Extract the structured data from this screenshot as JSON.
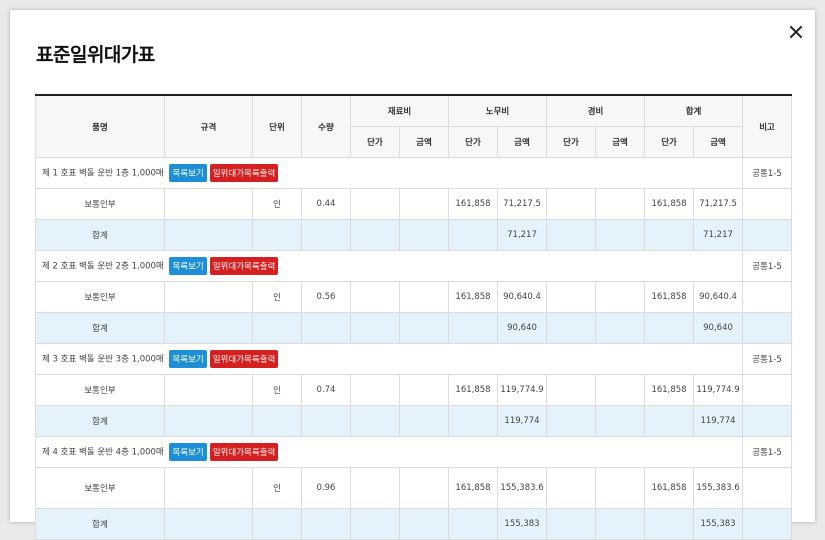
{
  "title": "표준일위대가표",
  "headers": {
    "name": "품명",
    "spec": "규격",
    "unit": "단위",
    "qty": "수량",
    "material": "재료비",
    "labor": "노무비",
    "expense": "경비",
    "sum": "합계",
    "note": "비고",
    "unit_price": "단가",
    "amount": "금액"
  },
  "buttons": {
    "list_view": "목록보기",
    "print": "일위대가목록출력"
  },
  "groups": [
    {
      "name": "제 1 호표 벽돌 운반 1층 1,000매",
      "note": "공통1-5",
      "item": {
        "name": "보통인부",
        "spec": "",
        "unit": "인",
        "qty": "0.44",
        "mat_price": "",
        "mat_amount": "",
        "labor_price": "161,858",
        "labor_amount": "71,217.5",
        "exp_price": "",
        "exp_amount": "",
        "sum_price": "161,858",
        "sum_amount": "71,217.5",
        "note": ""
      },
      "total": {
        "name": "합계",
        "labor_amount": "71,217",
        "sum_amount": "71,217"
      }
    },
    {
      "name": "제 2 호표 벽돌 운반 2층 1,000매",
      "note": "공통1-5",
      "item": {
        "name": "보통인부",
        "spec": "",
        "unit": "인",
        "qty": "0.56",
        "mat_price": "",
        "mat_amount": "",
        "labor_price": "161,858",
        "labor_amount": "90,640.4",
        "exp_price": "",
        "exp_amount": "",
        "sum_price": "161,858",
        "sum_amount": "90,640.4",
        "note": ""
      },
      "total": {
        "name": "합계",
        "labor_amount": "90,640",
        "sum_amount": "90,640"
      }
    },
    {
      "name": "제 3 호표 벽돌 운반 3층 1,000매",
      "note": "공통1-5",
      "item": {
        "name": "보통인부",
        "spec": "",
        "unit": "인",
        "qty": "0.74",
        "mat_price": "",
        "mat_amount": "",
        "labor_price": "161,858",
        "labor_amount": "119,774.9",
        "exp_price": "",
        "exp_amount": "",
        "sum_price": "161,858",
        "sum_amount": "119,774.9",
        "note": ""
      },
      "total": {
        "name": "합계",
        "labor_amount": "119,774",
        "sum_amount": "119,774"
      }
    },
    {
      "name": "제 4 호표 벽돌 운반 4층 1,000매",
      "note": "공통1-5",
      "item": {
        "name": "보통인부",
        "spec": "",
        "unit": "인",
        "qty": "0.96",
        "mat_price": "",
        "mat_amount": "",
        "labor_price": "161,858",
        "labor_amount": "155,383.6",
        "exp_price": "",
        "exp_amount": "",
        "sum_price": "161,858",
        "sum_amount": "155,383.6",
        "note": ""
      },
      "total": {
        "name": "합계",
        "labor_amount": "155,383",
        "sum_amount": "155,383"
      }
    }
  ]
}
